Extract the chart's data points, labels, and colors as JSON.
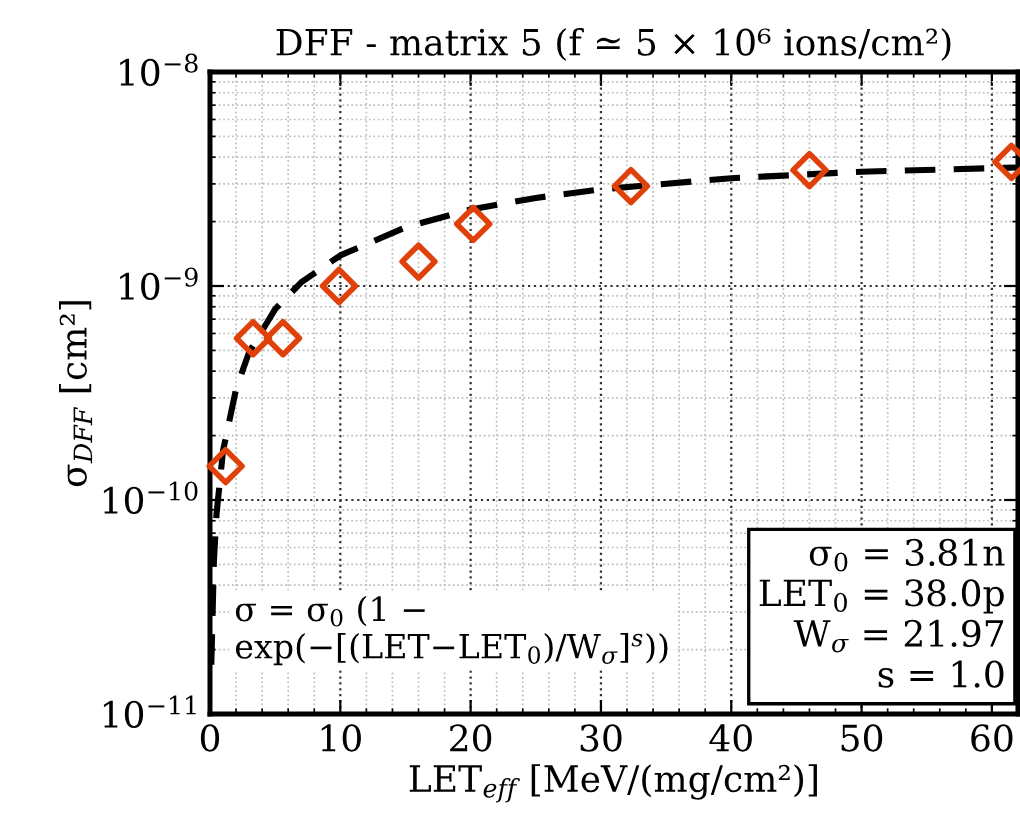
{
  "chart_data": {
    "type": "scatter",
    "title": "DFF - matrix 5 (f ≃ 5 × 10⁶ ions/cm²)",
    "xlabel": "LET$_{eff}$ [MeV/(mg/cm²)]",
    "ylabel": "σ$_{DFF}$ [cm²]",
    "xlim": [
      0,
      62
    ],
    "xticks": [
      0,
      10,
      20,
      30,
      40,
      50,
      60
    ],
    "ylim": [
      1e-11,
      1e-08
    ],
    "log": "y",
    "yticks": [
      {
        "value": 1e-11,
        "label": "10$^{−11}$"
      },
      {
        "value": 1e-10,
        "label": "10$^{−10}$"
      },
      {
        "value": 1e-09,
        "label": "10$^{−9}$"
      },
      {
        "value": 1e-08,
        "label": "10$^{−8}$"
      }
    ],
    "grid": true,
    "legend": false,
    "series": [
      {
        "type": "scatter",
        "color": "#e0400a",
        "marker": "diamond",
        "x": [
          1.2,
          3.3,
          5.6,
          9.9,
          16.0,
          20.2,
          32.3,
          46.0,
          61.5
        ],
        "values": [
          1.44e-10,
          5.7e-10,
          5.7e-10,
          1e-09,
          1.3e-09,
          1.95e-09,
          2.93e-09,
          3.48e-09,
          3.8e-09
        ]
      },
      {
        "type": "line",
        "color": "#000000",
        "line_style": "dashed",
        "marker": "none",
        "x": [
          0.1,
          0.3,
          0.5,
          1,
          2,
          3,
          5,
          7,
          10,
          15,
          20,
          25,
          30,
          40,
          50,
          62
        ],
        "values": [
          1.7e-11,
          5.2e-11,
          8.6e-11,
          1.7e-10,
          3.3e-10,
          4.9e-10,
          7.8e-10,
          1.04e-09,
          1.39e-09,
          1.88e-09,
          2.28e-09,
          2.58e-09,
          2.83e-09,
          3.19e-09,
          3.42e-09,
          3.58e-09
        ]
      }
    ],
    "annotations": [
      "σ = σ$_{0}$ (1 −\nexp(−[(LET−LET$_{0}$)/W$_{σ}$]$^{s}$))",
      "σ$_{0}$ = 3.81n\nLET$_{0}$ = 38.0p\nW$_{σ}$ = 21.97\ns = 1.0"
    ]
  }
}
